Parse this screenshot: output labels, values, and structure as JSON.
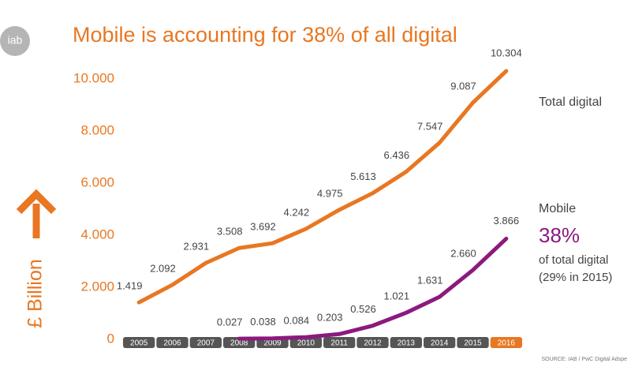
{
  "logo": "iab",
  "chart_data": {
    "type": "line",
    "title": "Mobile is accounting for 38% of all digital",
    "y_label": "£ Billion",
    "source": "SOURCE: IAB / PwC Digital Adspe",
    "annotations": [
      "38%",
      "of total digital",
      "(29% in 2015)"
    ],
    "categories": [
      "2005",
      "2006",
      "2007",
      "2008",
      "2009",
      "2010",
      "2011",
      "2012",
      "2013",
      "2014",
      "2015",
      "2016"
    ],
    "highlight_category": "2016",
    "series": [
      {
        "name": "Total digital",
        "color": "#e87722",
        "values": [
          1.419,
          2.092,
          2.931,
          3.508,
          3.692,
          4.242,
          4.975,
          5.613,
          6.436,
          7.547,
          9.087,
          10.304
        ],
        "value_labels": [
          "1.419",
          "2.092",
          "2.931",
          "3.508",
          "3.692",
          "4.242",
          "4.975",
          "5.613",
          "6.436",
          "7.547",
          "9.087",
          "10.304"
        ]
      },
      {
        "name": "Mobile",
        "color": "#8b1a7e",
        "values": [
          null,
          null,
          null,
          0.027,
          0.038,
          0.084,
          0.203,
          0.526,
          1.021,
          1.631,
          2.66,
          3.866
        ],
        "value_labels": [
          null,
          null,
          null,
          "0.027",
          "0.038",
          "0.084",
          "0.203",
          "0.526",
          "1.021",
          "1.631",
          "2.660",
          "3.866"
        ]
      }
    ],
    "ylim": [
      0,
      10.5
    ],
    "yticks": [
      0,
      {
        "value": 2,
        "label": "2.000"
      },
      {
        "value": 4,
        "label": "4.000"
      },
      {
        "value": 6,
        "label": "6.000"
      },
      {
        "value": 8,
        "label": "8.000"
      },
      {
        "value": 10,
        "label": "10.000"
      }
    ],
    "grid": false
  }
}
